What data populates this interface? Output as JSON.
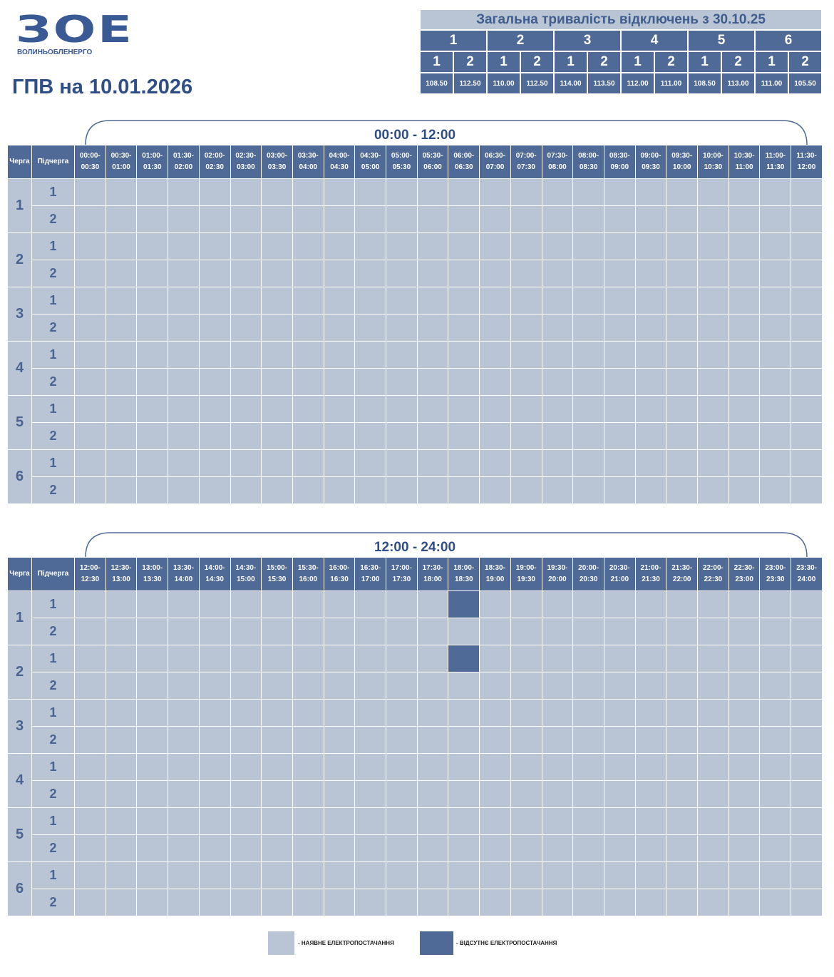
{
  "logo": {
    "mark": "ЗОЕ",
    "name": "ВОЛИНЬОБЛЕНЕРГО"
  },
  "title": "ГПВ на 10.01.2026",
  "queues": [
    "1",
    "2",
    "3",
    "4",
    "5",
    "6"
  ],
  "subqueues": [
    "1",
    "2"
  ],
  "summary": {
    "title": "Загальна тривалість відключень з 30.10.25",
    "durations": [
      [
        "108.50",
        "112.50"
      ],
      [
        "110.00",
        "112.50"
      ],
      [
        "114.00",
        "113.50"
      ],
      [
        "112.00",
        "111.00"
      ],
      [
        "108.50",
        "113.00"
      ],
      [
        "111.00",
        "105.50"
      ]
    ]
  },
  "schedules": [
    {
      "range": "00:00 - 12:00",
      "queue_header": "Черга",
      "subqueue_header": "Підчерга",
      "slots": [
        "00:00-00:30",
        "00:30-01:00",
        "01:00-01:30",
        "01:30-02:00",
        "02:00-02:30",
        "02:30-03:00",
        "03:00-03:30",
        "03:30-04:00",
        "04:00-04:30",
        "04:30-05:00",
        "05:00-05:30",
        "05:30-06:00",
        "06:00-06:30",
        "06:30-07:00",
        "07:00-07:30",
        "07:30-08:00",
        "08:00-08:30",
        "08:30-09:00",
        "09:00-09:30",
        "09:30-10:00",
        "10:00-10:30",
        "10:30-11:00",
        "11:00-11:30",
        "11:30-12:00"
      ]
    },
    {
      "range": "12:00 - 24:00",
      "queue_header": "Черга",
      "subqueue_header": "Підчерга",
      "slots": [
        "12:00-12:30",
        "12:30-13:00",
        "13:00-13:30",
        "13:30-14:00",
        "14:00-14:30",
        "14:30-15:00",
        "15:00-15:30",
        "15:30-16:00",
        "16:00-16:30",
        "16:30-17:00",
        "17:00-17:30",
        "17:30-18:00",
        "18:00-18:30",
        "18:30-19:00",
        "19:00-19:30",
        "19:30-20:00",
        "20:00-20:30",
        "20:30-21:00",
        "21:00-21:30",
        "21:30-22:00",
        "22:00-22:30",
        "22:30-23:00",
        "23:00-23:30",
        "23:30-24:00"
      ],
      "outages": [
        {
          "queue": 1,
          "subqueue": 1,
          "slot": 12
        },
        {
          "queue": 2,
          "subqueue": 1,
          "slot": 12
        }
      ]
    }
  ],
  "legend": {
    "on": "- НАЯВНЕ ЕЛЕКТРОПОСТАЧАННЯ",
    "off": "- ВІДСУТНЄ ЕЛЕКТРОПОСТАЧАННЯ"
  }
}
